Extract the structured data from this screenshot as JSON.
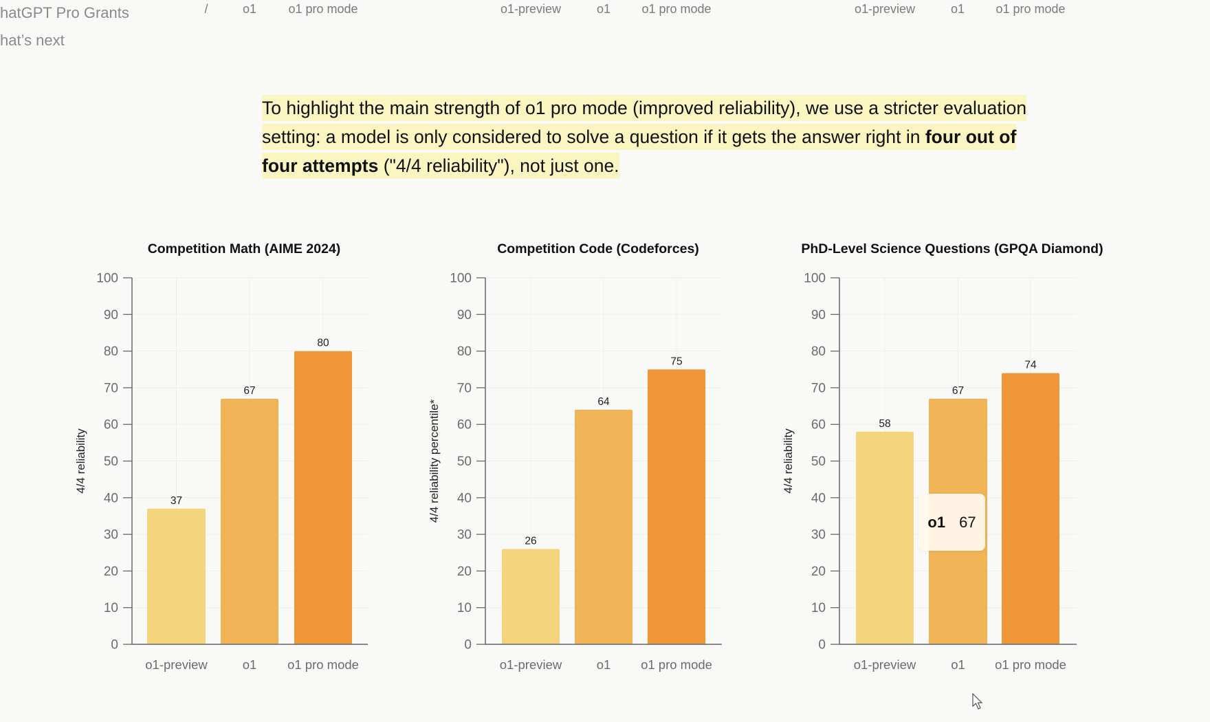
{
  "sidebar": {
    "items": [
      {
        "label": "hatGPT Pro Grants"
      },
      {
        "label": "hat’s next"
      }
    ]
  },
  "top_cut_labels": [
    "/",
    "o1",
    "o1 pro mode",
    "o1-preview",
    "o1",
    "o1 pro mode",
    "o1-preview",
    "o1",
    "o1 pro mode"
  ],
  "intro": {
    "part1": "To highlight the main strength of o1 pro mode (improved reliability), we use a stricter evaluation setting: a model is only considered to solve a question if it gets the answer right in ",
    "bold": "four out of four attempts",
    "part2": " (\"4/4 reliability\"), not just one."
  },
  "colors": {
    "o1-preview": "#F5D47E",
    "o1": "#F0B356",
    "o1 pro mode": "#EE9638"
  },
  "tooltip": {
    "name": "o1",
    "value": "67"
  },
  "chart_data": [
    {
      "type": "bar",
      "title": "Competition Math (AIME 2024)",
      "ylabel": "4/4 reliability",
      "xlabel": "",
      "categories": [
        "o1-preview",
        "o1",
        "o1 pro mode"
      ],
      "values": [
        37,
        67,
        80
      ],
      "ylim": [
        0,
        100
      ],
      "yticks": [
        0,
        10,
        20,
        30,
        40,
        50,
        60,
        70,
        80,
        90,
        100
      ],
      "grid": true
    },
    {
      "type": "bar",
      "title": "Competition Code (Codeforces)",
      "ylabel": "4/4 reliability percentile*",
      "xlabel": "",
      "categories": [
        "o1-preview",
        "o1",
        "o1 pro mode"
      ],
      "values": [
        26,
        64,
        75
      ],
      "ylim": [
        0,
        100
      ],
      "yticks": [
        0,
        10,
        20,
        30,
        40,
        50,
        60,
        70,
        80,
        90,
        100
      ],
      "grid": true
    },
    {
      "type": "bar",
      "title": "PhD-Level Science Questions (GPQA Diamond)",
      "ylabel": "4/4 reliability",
      "xlabel": "",
      "categories": [
        "o1-preview",
        "o1",
        "o1 pro mode"
      ],
      "values": [
        58,
        67,
        74
      ],
      "ylim": [
        0,
        100
      ],
      "yticks": [
        0,
        10,
        20,
        30,
        40,
        50,
        60,
        70,
        80,
        90,
        100
      ],
      "grid": true
    }
  ]
}
